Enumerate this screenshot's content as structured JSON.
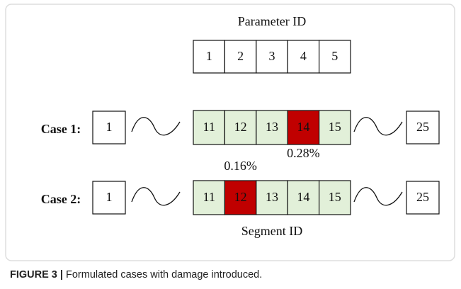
{
  "parameter_label": "Parameter ID",
  "parameters": [
    "1",
    "2",
    "3",
    "4",
    "5"
  ],
  "cases": [
    {
      "label": "Case 1:",
      "start": "1",
      "end": "25",
      "segments": [
        {
          "label": "11",
          "color": "#e2f0d9"
        },
        {
          "label": "12",
          "color": "#e2f0d9"
        },
        {
          "label": "13",
          "color": "#e2f0d9"
        },
        {
          "label": "14",
          "color": "#c00000",
          "note": "0.28%"
        },
        {
          "label": "15",
          "color": "#e2f0d9"
        }
      ]
    },
    {
      "label": "Case 2:",
      "start": "1",
      "end": "25",
      "segments": [
        {
          "label": "11",
          "color": "#e2f0d9"
        },
        {
          "label": "12",
          "color": "#c00000",
          "note": "0.16%"
        },
        {
          "label": "13",
          "color": "#e2f0d9"
        },
        {
          "label": "14",
          "color": "#e2f0d9"
        },
        {
          "label": "15",
          "color": "#e2f0d9"
        }
      ]
    }
  ],
  "segment_label": "Segment ID",
  "caption": {
    "figure": "FIGURE 3 |",
    "text": "Formulated cases with damage introduced."
  }
}
